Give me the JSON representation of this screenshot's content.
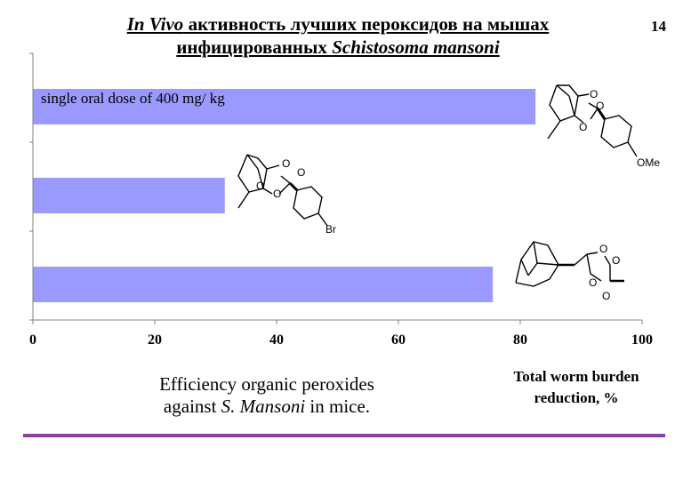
{
  "slide": {
    "number": "14",
    "title_part1": "In Vivo",
    "title_part2": " активность лучших пероксидов на мышах",
    "title_part3": "инфицированных ",
    "title_part4": "Schistosoma mansoni"
  },
  "dose_label": "single oral dose of 400 mg/ kg",
  "caption_left": {
    "line1": "Efficiency organic peroxides",
    "line2_prefix": "against ",
    "line2_italic": "S. Mansoni",
    "line2_suffix": " in mice."
  },
  "caption_right": {
    "line1": "Total worm burden",
    "line2": "reduction, %"
  },
  "chem_labels": {
    "ome": "OMe",
    "br": "Br",
    "o": "O"
  },
  "colors": {
    "bar": "#9999ff",
    "axis": "#808080",
    "rule": "#8b3fa5"
  },
  "chart_data": {
    "type": "bar",
    "orientation": "horizontal",
    "categories": [
      "",
      "",
      ""
    ],
    "values": [
      82.5,
      31.5,
      75.5
    ],
    "xlim": [
      0,
      100
    ],
    "xticks": [
      "0",
      "20",
      "40",
      "60",
      "80",
      "100"
    ],
    "xlabel": "Total worm burden reduction, %",
    "grid": false
  }
}
